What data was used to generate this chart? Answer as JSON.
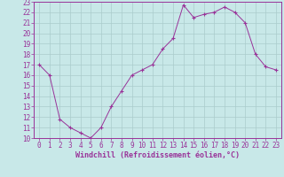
{
  "xlabel": "Windchill (Refroidissement éolien,°C)",
  "background_color": "#c8e8e8",
  "line_color": "#993399",
  "marker_color": "#993399",
  "grid_color": "#aacccc",
  "xlim": [
    -0.5,
    23.5
  ],
  "ylim": [
    10,
    23
  ],
  "x": [
    0,
    1,
    2,
    3,
    4,
    5,
    6,
    7,
    8,
    9,
    10,
    11,
    12,
    13,
    14,
    15,
    16,
    17,
    18,
    19,
    20,
    21,
    22,
    23
  ],
  "y": [
    17.0,
    16.0,
    11.8,
    11.0,
    10.5,
    10.0,
    11.0,
    13.0,
    14.5,
    16.0,
    16.5,
    17.0,
    18.5,
    19.5,
    22.7,
    21.5,
    21.8,
    22.0,
    22.5,
    22.0,
    21.0,
    18.0,
    16.8,
    16.5
  ],
  "yticks": [
    10,
    11,
    12,
    13,
    14,
    15,
    16,
    17,
    18,
    19,
    20,
    21,
    22,
    23
  ],
  "xticks": [
    0,
    1,
    2,
    3,
    4,
    5,
    6,
    7,
    8,
    9,
    10,
    11,
    12,
    13,
    14,
    15,
    16,
    17,
    18,
    19,
    20,
    21,
    22,
    23
  ],
  "xlabel_fontsize": 6,
  "tick_fontsize": 5.5
}
